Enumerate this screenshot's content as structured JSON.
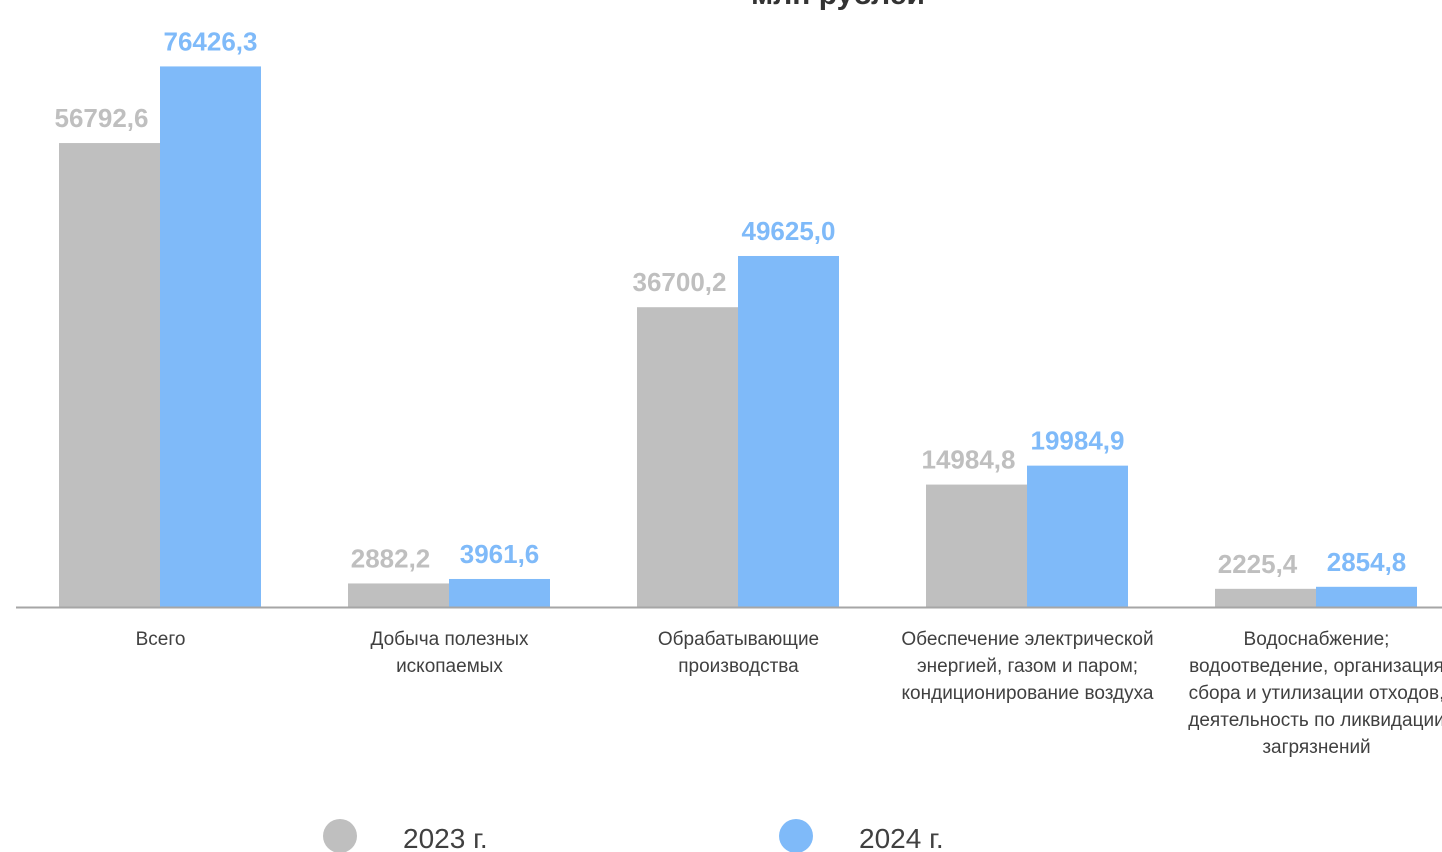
{
  "chart_data": {
    "type": "bar",
    "title": "млн рублей",
    "categories": [
      "Всего",
      "Добыча полезных ископаемых",
      "Обрабатывающие производства",
      "Обеспечение электрической энергией, газом и паром; кондиционирование воздуха",
      "Водоснабжение; водоотведение, организация сбора и утилизации отходов, деятельность по ликвидации загрязнений"
    ],
    "series": [
      {
        "name": "2023 г.",
        "color": "#bfbfbf",
        "axis": "y2",
        "values": [
          56792.6,
          2882.2,
          36700.2,
          14984.8,
          2225.4
        ],
        "value_labels": [
          "56792,6",
          "2882,2",
          "36700,2",
          "14984,8",
          "2225,4"
        ]
      },
      {
        "name": "2024 г.",
        "color": "#7fbaf9",
        "values": [
          76426.3,
          3961.6,
          49625.0,
          19984.9,
          2854.8
        ],
        "value_labels": [
          "76426,3",
          "3961,6",
          "49625,0",
          "19984,9",
          "2854,8"
        ]
      }
    ],
    "ylim": [
      0,
      82000
    ],
    "y2lim": [
      0,
      71000
    ],
    "legend": "bottom"
  }
}
